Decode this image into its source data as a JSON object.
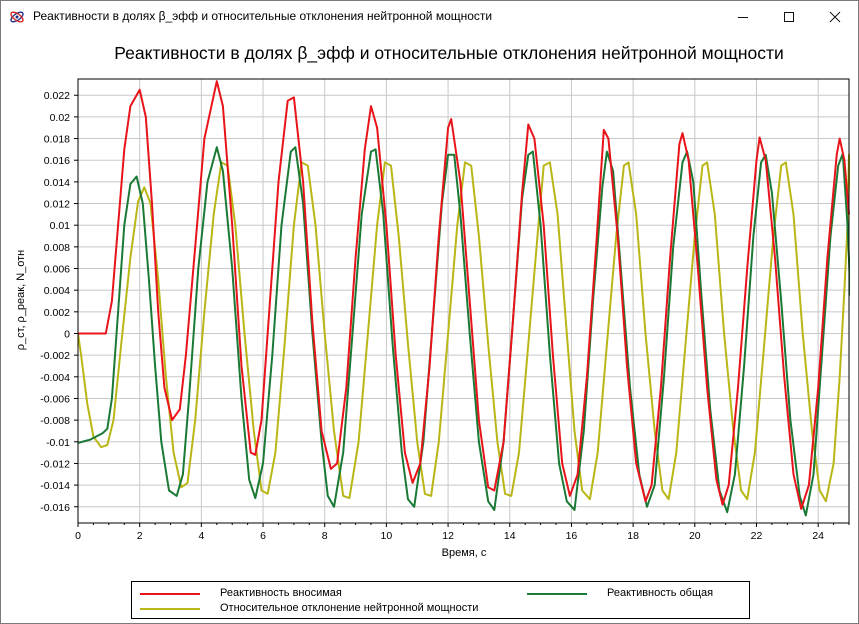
{
  "window": {
    "title": "Реактивности в долях β_эфф и относительные отклонения нейтронной мощности",
    "minimize_label": "—",
    "maximize_label": "☐",
    "close_label": "✕"
  },
  "chart_data": {
    "type": "line",
    "title": "Реактивности в долях β_эфф и относительные отклонения нейтронной мощности",
    "xlabel": "Время, с",
    "ylabel": "ρ_ст, ρ_реак, N_отн",
    "xlim": [
      0,
      25
    ],
    "ylim": [
      -0.0175,
      0.0235
    ],
    "xticks": [
      0,
      2,
      4,
      6,
      8,
      10,
      12,
      14,
      16,
      18,
      20,
      22,
      24
    ],
    "yticks": [
      -0.016,
      -0.014,
      -0.012,
      -0.01,
      -0.008,
      -0.006,
      -0.004,
      -0.002,
      0,
      0.002,
      0.004,
      0.006,
      0.008,
      0.01,
      0.012,
      0.014,
      0.016,
      0.018,
      0.02,
      0.022
    ],
    "grid": true,
    "legend_position": "bottom",
    "series": [
      {
        "name": "Реактивность вносимая",
        "color": "#e8141a",
        "points": [
          [
            0,
            0
          ],
          [
            0.5,
            0
          ],
          [
            0.9,
            0
          ],
          [
            1.1,
            0.003
          ],
          [
            1.3,
            0.01
          ],
          [
            1.5,
            0.017
          ],
          [
            1.7,
            0.021
          ],
          [
            2.0,
            0.0225
          ],
          [
            2.2,
            0.02
          ],
          [
            2.4,
            0.012
          ],
          [
            2.6,
            0.002
          ],
          [
            2.8,
            -0.005
          ],
          [
            3.05,
            -0.008
          ],
          [
            3.3,
            -0.007
          ],
          [
            3.5,
            -0.002
          ],
          [
            3.8,
            0.008
          ],
          [
            4.1,
            0.018
          ],
          [
            4.5,
            0.0233
          ],
          [
            4.7,
            0.021
          ],
          [
            5.0,
            0.01
          ],
          [
            5.3,
            -0.003
          ],
          [
            5.6,
            -0.011
          ],
          [
            5.75,
            -0.0112
          ],
          [
            5.95,
            -0.008
          ],
          [
            6.2,
            0.002
          ],
          [
            6.5,
            0.014
          ],
          [
            6.8,
            0.0215
          ],
          [
            7.0,
            0.0218
          ],
          [
            7.3,
            0.014
          ],
          [
            7.6,
            0.001
          ],
          [
            7.9,
            -0.009
          ],
          [
            8.2,
            -0.0125
          ],
          [
            8.4,
            -0.012
          ],
          [
            8.7,
            -0.005
          ],
          [
            9.0,
            0.007
          ],
          [
            9.3,
            0.017
          ],
          [
            9.5,
            0.021
          ],
          [
            9.7,
            0.019
          ],
          [
            10.0,
            0.01
          ],
          [
            10.3,
            -0.002
          ],
          [
            10.6,
            -0.011
          ],
          [
            10.85,
            -0.0138
          ],
          [
            11.1,
            -0.012
          ],
          [
            11.4,
            -0.003
          ],
          [
            11.7,
            0.009
          ],
          [
            12.0,
            0.019
          ],
          [
            12.1,
            0.0198
          ],
          [
            12.4,
            0.014
          ],
          [
            12.7,
            0.003
          ],
          [
            13.0,
            -0.008
          ],
          [
            13.3,
            -0.0142
          ],
          [
            13.5,
            -0.0145
          ],
          [
            13.8,
            -0.01
          ],
          [
            14.1,
            0.001
          ],
          [
            14.4,
            0.013
          ],
          [
            14.6,
            0.0193
          ],
          [
            14.8,
            0.018
          ],
          [
            15.1,
            0.01
          ],
          [
            15.4,
            -0.002
          ],
          [
            15.7,
            -0.012
          ],
          [
            15.95,
            -0.015
          ],
          [
            16.2,
            -0.013
          ],
          [
            16.5,
            -0.004
          ],
          [
            16.8,
            0.008
          ],
          [
            17.05,
            0.0188
          ],
          [
            17.2,
            0.018
          ],
          [
            17.5,
            0.009
          ],
          [
            17.8,
            -0.003
          ],
          [
            18.1,
            -0.012
          ],
          [
            18.4,
            -0.0155
          ],
          [
            18.6,
            -0.014
          ],
          [
            18.9,
            -0.005
          ],
          [
            19.2,
            0.007
          ],
          [
            19.5,
            0.0175
          ],
          [
            19.6,
            0.0185
          ],
          [
            19.8,
            0.016
          ],
          [
            20.1,
            0.006
          ],
          [
            20.4,
            -0.005
          ],
          [
            20.7,
            -0.0135
          ],
          [
            20.9,
            -0.0158
          ],
          [
            21.1,
            -0.014
          ],
          [
            21.4,
            -0.005
          ],
          [
            21.7,
            0.006
          ],
          [
            22.0,
            0.016
          ],
          [
            22.1,
            0.0181
          ],
          [
            22.3,
            0.016
          ],
          [
            22.6,
            0.007
          ],
          [
            22.9,
            -0.004
          ],
          [
            23.2,
            -0.013
          ],
          [
            23.45,
            -0.0162
          ],
          [
            23.7,
            -0.014
          ],
          [
            24.0,
            -0.005
          ],
          [
            24.3,
            0.007
          ],
          [
            24.6,
            0.0165
          ],
          [
            24.7,
            0.018
          ],
          [
            24.85,
            0.016
          ],
          [
            25.0,
            0.011
          ]
        ]
      },
      {
        "name": "Реактивность общая",
        "color": "#1a7a35",
        "points": [
          [
            0,
            -0.0101
          ],
          [
            0.4,
            -0.0098
          ],
          [
            0.8,
            -0.0092
          ],
          [
            0.95,
            -0.0088
          ],
          [
            1.1,
            -0.006
          ],
          [
            1.3,
            0.002
          ],
          [
            1.5,
            0.01
          ],
          [
            1.7,
            0.0138
          ],
          [
            1.9,
            0.0145
          ],
          [
            2.1,
            0.012
          ],
          [
            2.3,
            0.005
          ],
          [
            2.5,
            -0.003
          ],
          [
            2.7,
            -0.01
          ],
          [
            2.95,
            -0.0145
          ],
          [
            3.2,
            -0.015
          ],
          [
            3.4,
            -0.013
          ],
          [
            3.6,
            -0.006
          ],
          [
            3.9,
            0.006
          ],
          [
            4.2,
            0.014
          ],
          [
            4.5,
            0.0172
          ],
          [
            4.7,
            0.015
          ],
          [
            5.0,
            0.006
          ],
          [
            5.3,
            -0.006
          ],
          [
            5.55,
            -0.0135
          ],
          [
            5.75,
            -0.0152
          ],
          [
            6.0,
            -0.012
          ],
          [
            6.3,
            -0.002
          ],
          [
            6.6,
            0.01
          ],
          [
            6.9,
            0.0168
          ],
          [
            7.05,
            0.0172
          ],
          [
            7.3,
            0.012
          ],
          [
            7.6,
            0.0
          ],
          [
            7.9,
            -0.01
          ],
          [
            8.1,
            -0.015
          ],
          [
            8.3,
            -0.016
          ],
          [
            8.6,
            -0.011
          ],
          [
            8.9,
            0.0
          ],
          [
            9.2,
            0.011
          ],
          [
            9.5,
            0.0168
          ],
          [
            9.65,
            0.017
          ],
          [
            9.9,
            0.011
          ],
          [
            10.2,
            -0.001
          ],
          [
            10.5,
            -0.011
          ],
          [
            10.7,
            -0.0153
          ],
          [
            10.9,
            -0.016
          ],
          [
            11.2,
            -0.01
          ],
          [
            11.5,
            0.001
          ],
          [
            11.8,
            0.012
          ],
          [
            12.0,
            0.0165
          ],
          [
            12.2,
            0.0165
          ],
          [
            12.4,
            0.011
          ],
          [
            12.7,
            0.0
          ],
          [
            13.0,
            -0.01
          ],
          [
            13.3,
            -0.0155
          ],
          [
            13.5,
            -0.0163
          ],
          [
            13.8,
            -0.01
          ],
          [
            14.1,
            0.001
          ],
          [
            14.4,
            0.0125
          ],
          [
            14.6,
            0.0165
          ],
          [
            14.75,
            0.0168
          ],
          [
            15.0,
            0.01
          ],
          [
            15.3,
            -0.002
          ],
          [
            15.6,
            -0.012
          ],
          [
            15.85,
            -0.0155
          ],
          [
            16.1,
            -0.0163
          ],
          [
            16.4,
            -0.009
          ],
          [
            16.7,
            0.003
          ],
          [
            17.0,
            0.0135
          ],
          [
            17.15,
            0.0168
          ],
          [
            17.35,
            0.015
          ],
          [
            17.6,
            0.006
          ],
          [
            17.9,
            -0.005
          ],
          [
            18.2,
            -0.013
          ],
          [
            18.45,
            -0.016
          ],
          [
            18.7,
            -0.014
          ],
          [
            19.0,
            -0.004
          ],
          [
            19.3,
            0.008
          ],
          [
            19.6,
            0.0158
          ],
          [
            19.75,
            0.0168
          ],
          [
            19.95,
            0.014
          ],
          [
            20.2,
            0.004
          ],
          [
            20.5,
            -0.007
          ],
          [
            20.8,
            -0.0145
          ],
          [
            21.05,
            -0.0165
          ],
          [
            21.3,
            -0.013
          ],
          [
            21.6,
            -0.003
          ],
          [
            21.9,
            0.009
          ],
          [
            22.15,
            0.0158
          ],
          [
            22.3,
            0.0165
          ],
          [
            22.5,
            0.013
          ],
          [
            22.8,
            0.003
          ],
          [
            23.1,
            -0.008
          ],
          [
            23.4,
            -0.015
          ],
          [
            23.6,
            -0.0168
          ],
          [
            23.85,
            -0.013
          ],
          [
            24.1,
            -0.003
          ],
          [
            24.4,
            0.009
          ],
          [
            24.65,
            0.0155
          ],
          [
            24.8,
            0.0166
          ],
          [
            24.95,
            0.01
          ],
          [
            25.05,
            0.0035
          ]
        ]
      },
      {
        "name": "Относительное отклонение нейтронной мощности",
        "color": "#b9b617",
        "points": [
          [
            0,
            0
          ],
          [
            0.1,
            -0.002
          ],
          [
            0.3,
            -0.0065
          ],
          [
            0.5,
            -0.0095
          ],
          [
            0.75,
            -0.0105
          ],
          [
            0.95,
            -0.0103
          ],
          [
            1.15,
            -0.008
          ],
          [
            1.4,
            -0.001
          ],
          [
            1.7,
            0.007
          ],
          [
            1.95,
            0.0122
          ],
          [
            2.15,
            0.0135
          ],
          [
            2.35,
            0.012
          ],
          [
            2.6,
            0.005
          ],
          [
            2.85,
            -0.004
          ],
          [
            3.1,
            -0.011
          ],
          [
            3.35,
            -0.0142
          ],
          [
            3.55,
            -0.0138
          ],
          [
            3.8,
            -0.008
          ],
          [
            4.1,
            0.002
          ],
          [
            4.4,
            0.011
          ],
          [
            4.65,
            0.0158
          ],
          [
            4.85,
            0.0155
          ],
          [
            5.1,
            0.01
          ],
          [
            5.4,
            0.0
          ],
          [
            5.7,
            -0.009
          ],
          [
            5.95,
            -0.0145
          ],
          [
            6.15,
            -0.0148
          ],
          [
            6.4,
            -0.011
          ],
          [
            6.7,
            -0.001
          ],
          [
            7.0,
            0.01
          ],
          [
            7.25,
            0.0158
          ],
          [
            7.45,
            0.0155
          ],
          [
            7.7,
            0.01
          ],
          [
            8.0,
            0.0
          ],
          [
            8.3,
            -0.009
          ],
          [
            8.6,
            -0.015
          ],
          [
            8.8,
            -0.0152
          ],
          [
            9.1,
            -0.01
          ],
          [
            9.4,
            0.0
          ],
          [
            9.7,
            0.01
          ],
          [
            9.95,
            0.0158
          ],
          [
            10.15,
            0.0155
          ],
          [
            10.4,
            0.009
          ],
          [
            10.7,
            -0.001
          ],
          [
            11.0,
            -0.01
          ],
          [
            11.25,
            -0.0148
          ],
          [
            11.45,
            -0.015
          ],
          [
            11.7,
            -0.01
          ],
          [
            12.0,
            0.0
          ],
          [
            12.3,
            0.01
          ],
          [
            12.55,
            0.0158
          ],
          [
            12.75,
            0.0155
          ],
          [
            13.0,
            0.009
          ],
          [
            13.3,
            -0.001
          ],
          [
            13.6,
            -0.01
          ],
          [
            13.85,
            -0.0148
          ],
          [
            14.05,
            -0.015
          ],
          [
            14.3,
            -0.011
          ],
          [
            14.6,
            -0.001
          ],
          [
            14.9,
            0.009
          ],
          [
            15.1,
            0.0155
          ],
          [
            15.3,
            0.0158
          ],
          [
            15.55,
            0.011
          ],
          [
            15.85,
            0.0
          ],
          [
            16.1,
            -0.009
          ],
          [
            16.35,
            -0.0145
          ],
          [
            16.6,
            -0.0153
          ],
          [
            16.85,
            -0.011
          ],
          [
            17.15,
            -0.001
          ],
          [
            17.45,
            0.009
          ],
          [
            17.7,
            0.0155
          ],
          [
            17.85,
            0.0158
          ],
          [
            18.1,
            0.011
          ],
          [
            18.4,
            0.0
          ],
          [
            18.7,
            -0.009
          ],
          [
            18.95,
            -0.0145
          ],
          [
            19.15,
            -0.0153
          ],
          [
            19.4,
            -0.011
          ],
          [
            19.7,
            -0.001
          ],
          [
            20.0,
            0.009
          ],
          [
            20.25,
            0.0155
          ],
          [
            20.4,
            0.0158
          ],
          [
            20.65,
            0.011
          ],
          [
            20.95,
            0.0
          ],
          [
            21.25,
            -0.009
          ],
          [
            21.5,
            -0.0145
          ],
          [
            21.7,
            -0.0153
          ],
          [
            21.95,
            -0.011
          ],
          [
            22.25,
            -0.001
          ],
          [
            22.55,
            0.009
          ],
          [
            22.8,
            0.0155
          ],
          [
            22.95,
            0.0158
          ],
          [
            23.2,
            0.011
          ],
          [
            23.5,
            0.0
          ],
          [
            23.8,
            -0.009
          ],
          [
            24.05,
            -0.0145
          ],
          [
            24.25,
            -0.0155
          ],
          [
            24.5,
            -0.012
          ],
          [
            24.7,
            -0.004
          ],
          [
            24.85,
            0.004
          ],
          [
            24.95,
            0.01
          ],
          [
            25.0,
            0.0165
          ],
          [
            25.1,
            0.011
          ]
        ]
      }
    ]
  },
  "legend": {
    "items": [
      "Реактивность вносимая",
      "Реактивность общая",
      "Относительное отклонение нейтронной мощности"
    ]
  }
}
